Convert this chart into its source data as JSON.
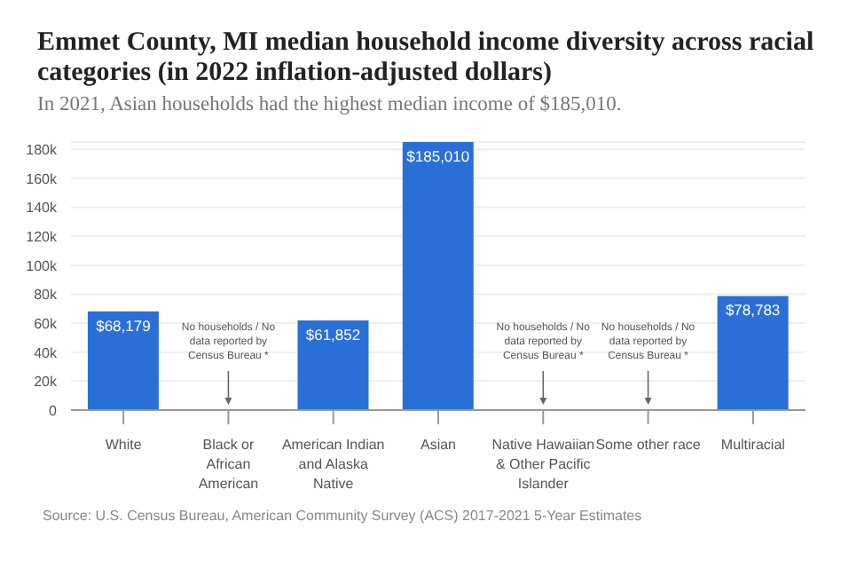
{
  "chart_data": {
    "type": "bar",
    "title": "Emmet County, MI median household income diversity across racial categories (in 2022 inflation-adjusted dollars)",
    "subtitle": "In 2021, Asian households had the highest median income of $185,010.",
    "categories": [
      "White",
      "Black or African American",
      "American Indian and Alaska Native",
      "Asian",
      "Native Hawaiian & Other Pacific Islander",
      "Some other race",
      "Multiracial"
    ],
    "values": [
      68179,
      null,
      61852,
      185010,
      null,
      null,
      78783
    ],
    "value_labels": [
      "$68,179",
      null,
      "$61,852",
      "$185,010",
      null,
      null,
      "$78,783"
    ],
    "color": "#2a6fd6",
    "ylim": [
      0,
      185010
    ],
    "yticks": [
      0,
      {
        "value": 20000,
        "label": "20k"
      },
      {
        "value": 40000,
        "label": "40k"
      },
      {
        "value": 60000,
        "label": "60k"
      },
      {
        "value": 80000,
        "label": "80k"
      },
      {
        "value": 100000,
        "label": "100k"
      },
      {
        "value": 120000,
        "label": "120k"
      },
      {
        "value": 140000,
        "label": "140k"
      },
      {
        "value": 160000,
        "label": "160k"
      },
      {
        "value": 180000,
        "label": "180k"
      }
    ],
    "grid": "y",
    "legend": false,
    "annotations": [
      "No households / No data reported by Census Bureau *",
      "No households / No data reported by Census Bureau *",
      "No households / No data reported by Census Bureau *",
      "Source: U.S. Census Bureau, American Community Survey (ACS) 2017-2021 5-Year Estimates"
    ]
  }
}
